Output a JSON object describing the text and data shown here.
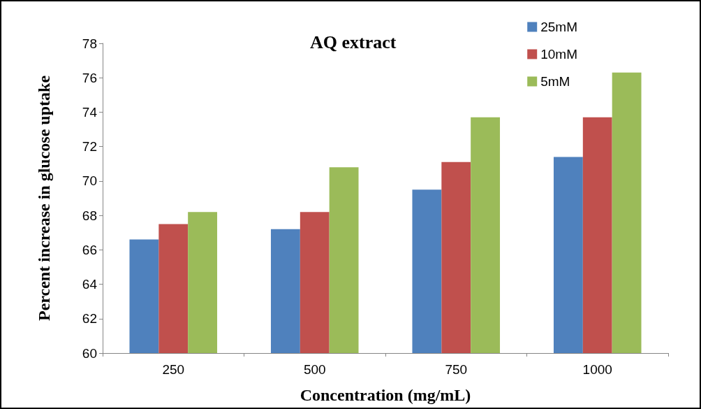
{
  "chart_data": {
    "type": "bar",
    "title": "AQ extract",
    "xlabel": "Concentration (mg/mL)",
    "ylabel": "Percent increase in glucose uptake",
    "categories": [
      "250",
      "500",
      "750",
      "1000"
    ],
    "series": [
      {
        "name": "25mM",
        "color": "#4f81bd",
        "values": [
          66.6,
          67.2,
          69.5,
          71.4
        ]
      },
      {
        "name": "10mM",
        "color": "#c0504d",
        "values": [
          67.5,
          68.2,
          71.1,
          73.7
        ]
      },
      {
        "name": "5mM",
        "color": "#9bbb59",
        "values": [
          68.2,
          70.8,
          73.7,
          76.3
        ]
      }
    ],
    "ylim": [
      60,
      78
    ],
    "yticks": [
      60,
      62,
      64,
      66,
      68,
      70,
      72,
      74,
      76,
      78
    ],
    "grid": false,
    "legend": "top right"
  }
}
